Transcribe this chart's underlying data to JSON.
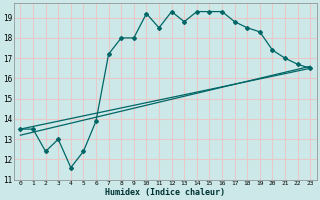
{
  "xlabel": "Humidex (Indice chaleur)",
  "bg_color": "#cce8e8",
  "grid_color": "#e8c8c8",
  "line_color": "#006666",
  "xlim": [
    -0.5,
    23.5
  ],
  "ylim": [
    11,
    19.7
  ],
  "xticks": [
    0,
    1,
    2,
    3,
    4,
    5,
    6,
    7,
    8,
    9,
    10,
    11,
    12,
    13,
    14,
    15,
    16,
    17,
    18,
    19,
    20,
    21,
    22,
    23
  ],
  "yticks": [
    11,
    12,
    13,
    14,
    15,
    16,
    17,
    18,
    19
  ],
  "line1_x": [
    0,
    1,
    2,
    3,
    4,
    5,
    6,
    7,
    8,
    9,
    10,
    11,
    12,
    13,
    14,
    15,
    16,
    17,
    18,
    19,
    20,
    21,
    22,
    23
  ],
  "line1_y": [
    13.5,
    13.5,
    12.4,
    13.0,
    11.6,
    12.4,
    13.9,
    17.2,
    18.0,
    18.0,
    19.2,
    18.5,
    19.3,
    18.8,
    19.3,
    19.3,
    19.3,
    18.8,
    18.5,
    18.3,
    17.4,
    17.0,
    16.7,
    16.5
  ],
  "line2_x": [
    0,
    23
  ],
  "line2_y": [
    13.5,
    16.5
  ],
  "line3_x": [
    0,
    23
  ],
  "line3_y": [
    13.2,
    16.6
  ]
}
